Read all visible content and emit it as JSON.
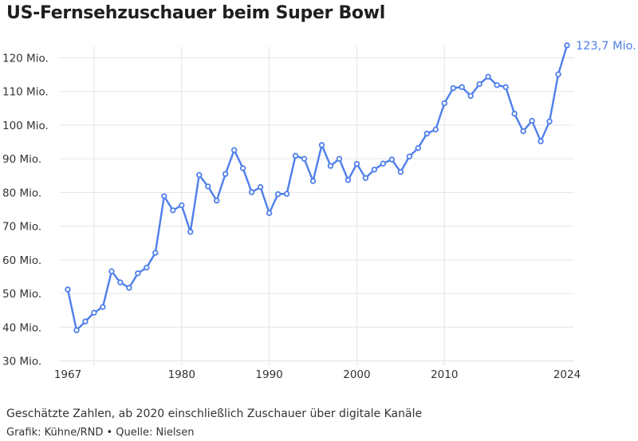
{
  "title": "US-Fernsehzuschauer beim Super Bowl",
  "note": "Geschätzte Zahlen, ab 2020 einschließlich Zuschauer über digitale Kanäle",
  "credit": "Grafik: Kühne/RND • Quelle: Nielsen",
  "colors": {
    "line": "#4f7fea",
    "marker_fill": "#ffffff",
    "end_label": "#4f7fea"
  },
  "chart_data": {
    "type": "line",
    "title": "US-Fernsehzuschauer beim Super Bowl",
    "xlabel": "",
    "ylabel": "",
    "xlim": [
      1967,
      2024
    ],
    "ylim": [
      30,
      120
    ],
    "x_ticks": [
      1967,
      1980,
      1990,
      2000,
      2010,
      2024
    ],
    "x_tick_labels": [
      "1967",
      "1980",
      "1990",
      "2000",
      "2010",
      "2024"
    ],
    "y_ticks": [
      30,
      40,
      50,
      60,
      70,
      80,
      90,
      100,
      110,
      120
    ],
    "y_tick_labels": [
      "30 Mio.",
      "40 Mio.",
      "50 Mio.",
      "60 Mio.",
      "70 Mio.",
      "80 Mio.",
      "90 Mio.",
      "100 Mio.",
      "110 Mio.",
      "120 Mio."
    ],
    "grid": true,
    "end_label": "123,7 Mio.",
    "series": [
      {
        "x": [
          1967,
          1968,
          1969,
          1970,
          1971,
          1972,
          1973,
          1974,
          1975,
          1976,
          1977,
          1978,
          1979,
          1980,
          1981,
          1982,
          1983,
          1984,
          1985,
          1986,
          1987,
          1988,
          1989,
          1990,
          1991,
          1992,
          1993,
          1994,
          1995,
          1996,
          1997,
          1998,
          1999,
          2000,
          2001,
          2002,
          2003,
          2004,
          2005,
          2006,
          2007,
          2008,
          2009,
          2010,
          2011,
          2012,
          2013,
          2014,
          2015,
          2016,
          2017,
          2018,
          2019,
          2020,
          2021,
          2022,
          2023,
          2024
        ],
        "values": [
          51.2,
          39.1,
          41.7,
          44.3,
          46.0,
          56.6,
          53.3,
          51.7,
          56.0,
          57.7,
          62.1,
          78.9,
          74.7,
          76.2,
          68.3,
          85.2,
          81.8,
          77.6,
          85.5,
          92.6,
          87.2,
          80.1,
          81.6,
          73.9,
          79.5,
          79.6,
          90.9,
          90.0,
          83.4,
          94.1,
          87.9,
          90.0,
          83.7,
          88.5,
          84.3,
          86.8,
          88.6,
          89.8,
          86.1,
          90.7,
          93.2,
          97.5,
          98.7,
          106.5,
          111.0,
          111.3,
          108.7,
          112.2,
          114.4,
          111.9,
          111.3,
          103.4,
          98.2,
          101.3,
          95.2,
          101.1,
          115.1,
          123.7
        ]
      }
    ]
  }
}
